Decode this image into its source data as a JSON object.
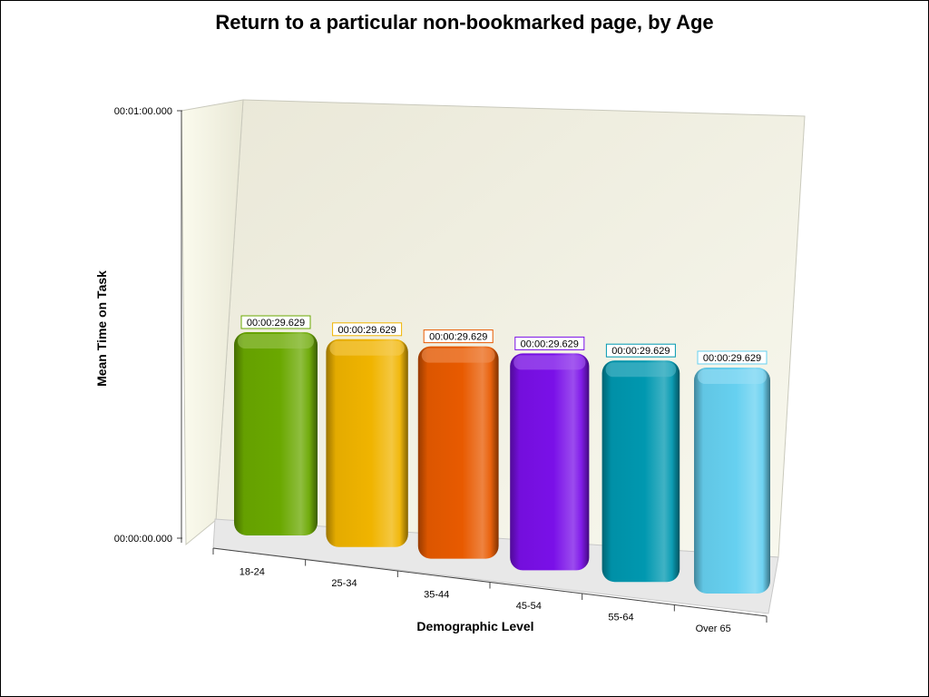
{
  "chart_data": {
    "type": "bar",
    "title": "Return to a particular non-bookmarked page, by Age",
    "xlabel": "Demographic Level",
    "ylabel": "Mean Time on Task",
    "categories": [
      "18-24",
      "25-34",
      "35-44",
      "45-54",
      "55-64",
      "Over 65"
    ],
    "values": [
      29.629,
      29.629,
      29.629,
      29.629,
      29.629,
      29.629
    ],
    "value_labels": [
      "00:00:29.629",
      "00:00:29.629",
      "00:00:29.629",
      "00:00:29.629",
      "00:00:29.629",
      "00:00:29.629"
    ],
    "value_unit": "seconds",
    "ylim": [
      0,
      60
    ],
    "y_tick_labels": [
      "00:00:00.000",
      "00:01:00.000"
    ],
    "colors": [
      "#6aa800",
      "#f0b400",
      "#e85a00",
      "#7a10e8",
      "#0098b0",
      "#66d0f0"
    ],
    "grid": false,
    "legend": "none",
    "style": "3d"
  }
}
